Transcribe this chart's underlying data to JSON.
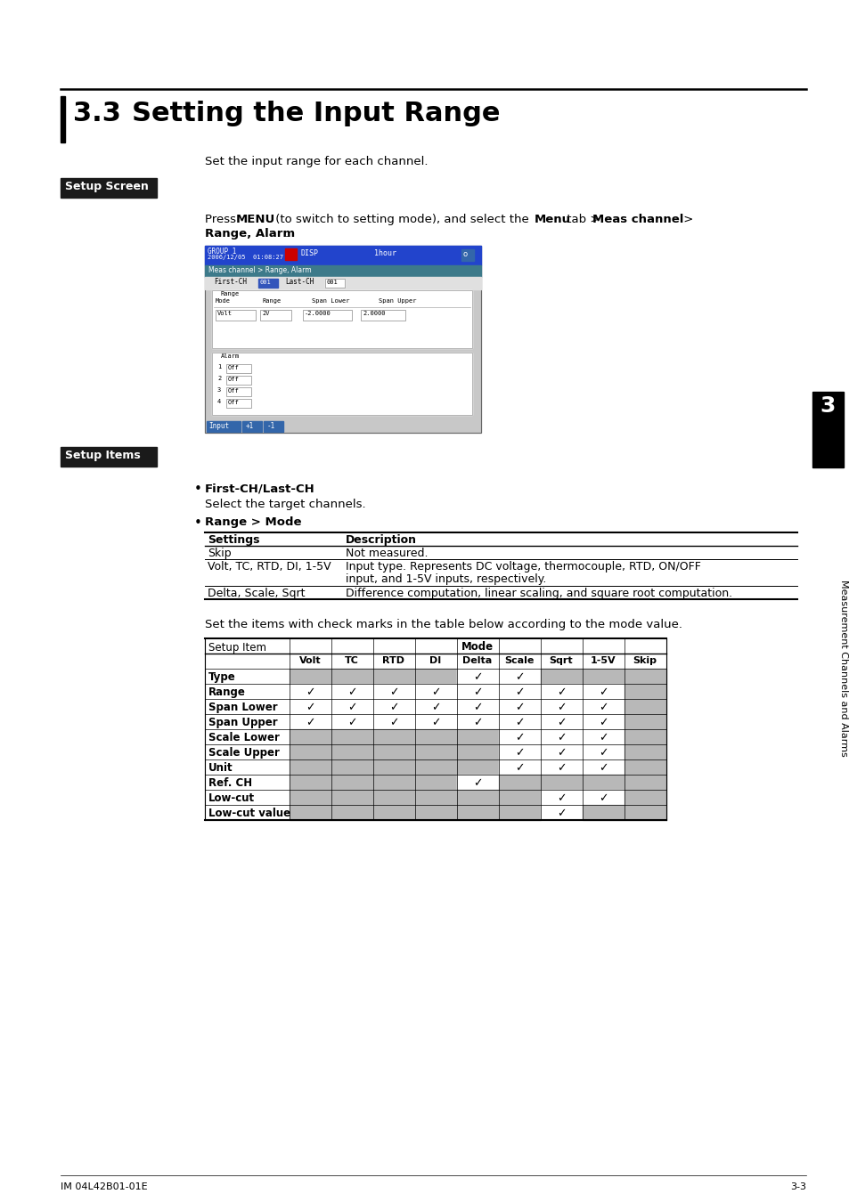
{
  "title_num": "3.3",
  "title_text": "Setting the Input Range",
  "body_text_intro": "Set the input range for each channel.",
  "setup_screen_label": "Setup Screen",
  "setup_items_label": "Setup Items",
  "bullet1_title": "First-CH/Last-CH",
  "bullet1_body": "Select the target channels.",
  "bullet2_title": "Range > Mode",
  "range_mode_table_headers": [
    "Settings",
    "Description"
  ],
  "range_mode_rows": [
    [
      "Skip",
      "Not measured."
    ],
    [
      "Volt, TC, RTD, DI, 1-5V",
      "Input type. Represents DC voltage, thermocouple, RTD, ON/OFF\ninput, and 1-5V inputs, respectively."
    ],
    [
      "Delta, Scale, Sqrt",
      "Difference computation, linear scaling, and square root computation."
    ]
  ],
  "set_items_text": "Set the items with check marks in the table below according to the mode value.",
  "mode_table_col1": "Setup Item",
  "mode_table_mode_header": "Mode",
  "mode_cols": [
    "Volt",
    "TC",
    "RTD",
    "DI",
    "Delta",
    "Scale",
    "Sqrt",
    "1-5V",
    "Skip"
  ],
  "mode_rows": [
    {
      "name": "Type",
      "checks": [
        0,
        0,
        0,
        0,
        1,
        1,
        0,
        0,
        0
      ]
    },
    {
      "name": "Range",
      "checks": [
        1,
        1,
        1,
        1,
        1,
        1,
        1,
        1,
        0
      ]
    },
    {
      "name": "Span Lower",
      "checks": [
        1,
        1,
        1,
        1,
        1,
        1,
        1,
        1,
        0
      ]
    },
    {
      "name": "Span Upper",
      "checks": [
        1,
        1,
        1,
        1,
        1,
        1,
        1,
        1,
        0
      ]
    },
    {
      "name": "Scale Lower",
      "checks": [
        0,
        0,
        0,
        0,
        0,
        1,
        1,
        1,
        0
      ]
    },
    {
      "name": "Scale Upper",
      "checks": [
        0,
        0,
        0,
        0,
        0,
        1,
        1,
        1,
        0
      ]
    },
    {
      "name": "Unit",
      "checks": [
        0,
        0,
        0,
        0,
        0,
        1,
        1,
        1,
        0
      ]
    },
    {
      "name": "Ref. CH",
      "checks": [
        0,
        0,
        0,
        0,
        1,
        0,
        0,
        0,
        0
      ]
    },
    {
      "name": "Low-cut",
      "checks": [
        0,
        0,
        0,
        0,
        0,
        0,
        1,
        1,
        0
      ]
    },
    {
      "name": "Low-cut value",
      "checks": [
        0,
        0,
        0,
        0,
        0,
        0,
        1,
        0,
        0
      ]
    }
  ],
  "side_label": "Measurement Channels and Alarms",
  "side_chapter": "3",
  "footer_left": "IM 04L42B01-01E",
  "footer_right": "3-3",
  "bg_color": "#ffffff",
  "gray_cell": "#b8b8b8",
  "white_cell": "#ffffff",
  "setup_label_bg": "#1a1a1a",
  "setup_label_fg": "#ffffff",
  "screen_bg": "#c8c8c8",
  "screen_titlebar": "#2244cc",
  "screen_teal": "#336688",
  "screen_blue_btn": "#3366aa"
}
